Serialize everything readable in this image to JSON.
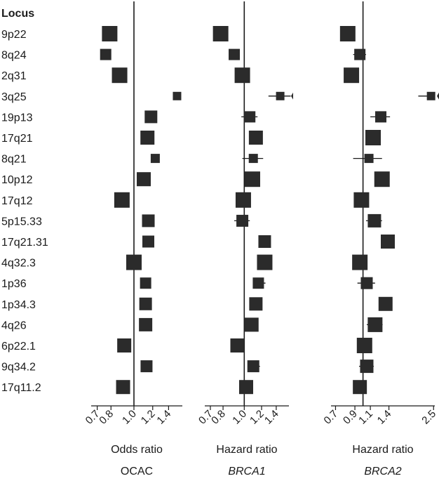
{
  "chart_data": {
    "type": "forest",
    "row_header": "Locus",
    "loci": [
      "9p22",
      "8q24",
      "2q31",
      "3q25",
      "19p13",
      "17q21",
      "8q21",
      "10p12",
      "17q12",
      "5p15.33",
      "17q21.31",
      "4q32.3",
      "1p36",
      "1p34.3",
      "4q26",
      "6p22.1",
      "9q34.2",
      "17q11.2"
    ],
    "panels": [
      {
        "title": "OCAC",
        "title_italic": false,
        "xlabel": "Odds ratio",
        "xlim": [
          0.66,
          1.6
        ],
        "ticks": [
          0.7,
          0.8,
          1.0,
          1.2,
          1.4
        ],
        "tick_labels": [
          "0.7",
          "0.8",
          "1.0",
          "1.2",
          "1.4"
        ],
        "ref_line": 1.0,
        "estimates": [
          0.79,
          0.76,
          0.87,
          1.52,
          1.18,
          1.14,
          1.23,
          1.1,
          0.89,
          1.15,
          1.15,
          1.0,
          1.12,
          1.12,
          1.12,
          0.91,
          1.13,
          0.9
        ],
        "ci": [
          [
            0.78,
            0.8
          ],
          [
            0.73,
            0.79
          ],
          [
            0.86,
            0.88
          ],
          [
            1.48,
            1.56
          ],
          [
            1.17,
            1.19
          ],
          [
            1.13,
            1.15
          ],
          [
            1.19,
            1.27
          ],
          [
            1.09,
            1.11
          ],
          [
            0.88,
            0.9
          ],
          [
            1.14,
            1.16
          ],
          [
            1.14,
            1.16
          ],
          [
            0.99,
            1.01
          ],
          [
            1.11,
            1.13
          ],
          [
            1.11,
            1.13
          ],
          [
            1.11,
            1.13
          ],
          [
            0.9,
            0.92
          ],
          [
            1.12,
            1.14
          ],
          [
            0.89,
            0.91
          ]
        ],
        "weights": [
          22,
          16,
          22,
          12,
          18,
          20,
          13,
          20,
          22,
          18,
          17,
          22,
          16,
          18,
          19,
          20,
          17,
          20
        ]
      },
      {
        "title": "BRCA1",
        "title_italic": true,
        "xlabel": "Hazard ratio",
        "xlim": [
          0.66,
          1.6
        ],
        "ticks": [
          0.7,
          0.8,
          1.0,
          1.2,
          1.4
        ],
        "tick_labels": [
          "0.7",
          "0.8",
          "1.0",
          "1.2",
          "1.4"
        ],
        "ref_line": 1.0,
        "estimates": [
          0.78,
          0.9,
          0.98,
          1.46,
          1.06,
          1.13,
          1.1,
          1.09,
          0.99,
          0.98,
          1.24,
          1.24,
          1.16,
          1.13,
          1.08,
          0.93,
          1.1,
          1.02
        ],
        "ci": [
          [
            0.77,
            0.79
          ],
          [
            0.85,
            0.95
          ],
          [
            0.97,
            0.99
          ],
          [
            1.29,
            1.63
          ],
          [
            0.97,
            1.15
          ],
          [
            1.11,
            1.16
          ],
          [
            0.98,
            1.22
          ],
          [
            1.08,
            1.1
          ],
          [
            0.98,
            1.0
          ],
          [
            0.9,
            1.06
          ],
          [
            1.2,
            1.31
          ],
          [
            1.22,
            1.26
          ],
          [
            1.1,
            1.25
          ],
          [
            1.07,
            1.19
          ],
          [
            1.02,
            1.14
          ],
          [
            0.91,
            0.95
          ],
          [
            1.05,
            1.18
          ],
          [
            0.96,
            1.08
          ]
        ],
        "weights": [
          22,
          16,
          22,
          12,
          16,
          20,
          13,
          22,
          22,
          17,
          18,
          22,
          16,
          19,
          20,
          20,
          17,
          20
        ]
      },
      {
        "title": "BRCA2",
        "title_italic": true,
        "xlabel": "Hazard ratio",
        "xlim": [
          0.66,
          2.54
        ],
        "ticks": [
          0.7,
          0.9,
          1.1,
          1.4,
          2.5
        ],
        "tick_labels": [
          "0.7",
          "0.9",
          "1.1",
          "1.4",
          "2.5"
        ],
        "ref_line": 1.0,
        "estimates": [
          0.82,
          0.96,
          0.86,
          2.42,
          1.26,
          1.14,
          1.08,
          1.28,
          0.98,
          1.16,
          1.38,
          0.96,
          1.05,
          1.34,
          1.17,
          1.02,
          1.05,
          0.96
        ],
        "ci": [
          [
            0.78,
            0.86
          ],
          [
            0.88,
            1.04
          ],
          [
            0.8,
            0.92
          ],
          [
            2.05,
            2.55
          ],
          [
            1.1,
            1.42
          ],
          [
            1.08,
            1.2
          ],
          [
            0.88,
            1.28
          ],
          [
            1.2,
            1.36
          ],
          [
            0.9,
            1.06
          ],
          [
            1.04,
            1.28
          ],
          [
            1.3,
            1.48
          ],
          [
            0.88,
            1.04
          ],
          [
            0.93,
            1.17
          ],
          [
            1.26,
            1.44
          ],
          [
            1.05,
            1.29
          ],
          [
            0.94,
            1.1
          ],
          [
            0.95,
            1.15
          ],
          [
            0.88,
            1.04
          ]
        ],
        "weights": [
          22,
          16,
          22,
          12,
          16,
          22,
          13,
          22,
          22,
          19,
          20,
          22,
          17,
          20,
          21,
          22,
          19,
          20
        ]
      }
    ],
    "colors": {
      "marker": "#2b2b2b",
      "line": "#1a1a1a",
      "text": "#1a1a1a"
    }
  }
}
